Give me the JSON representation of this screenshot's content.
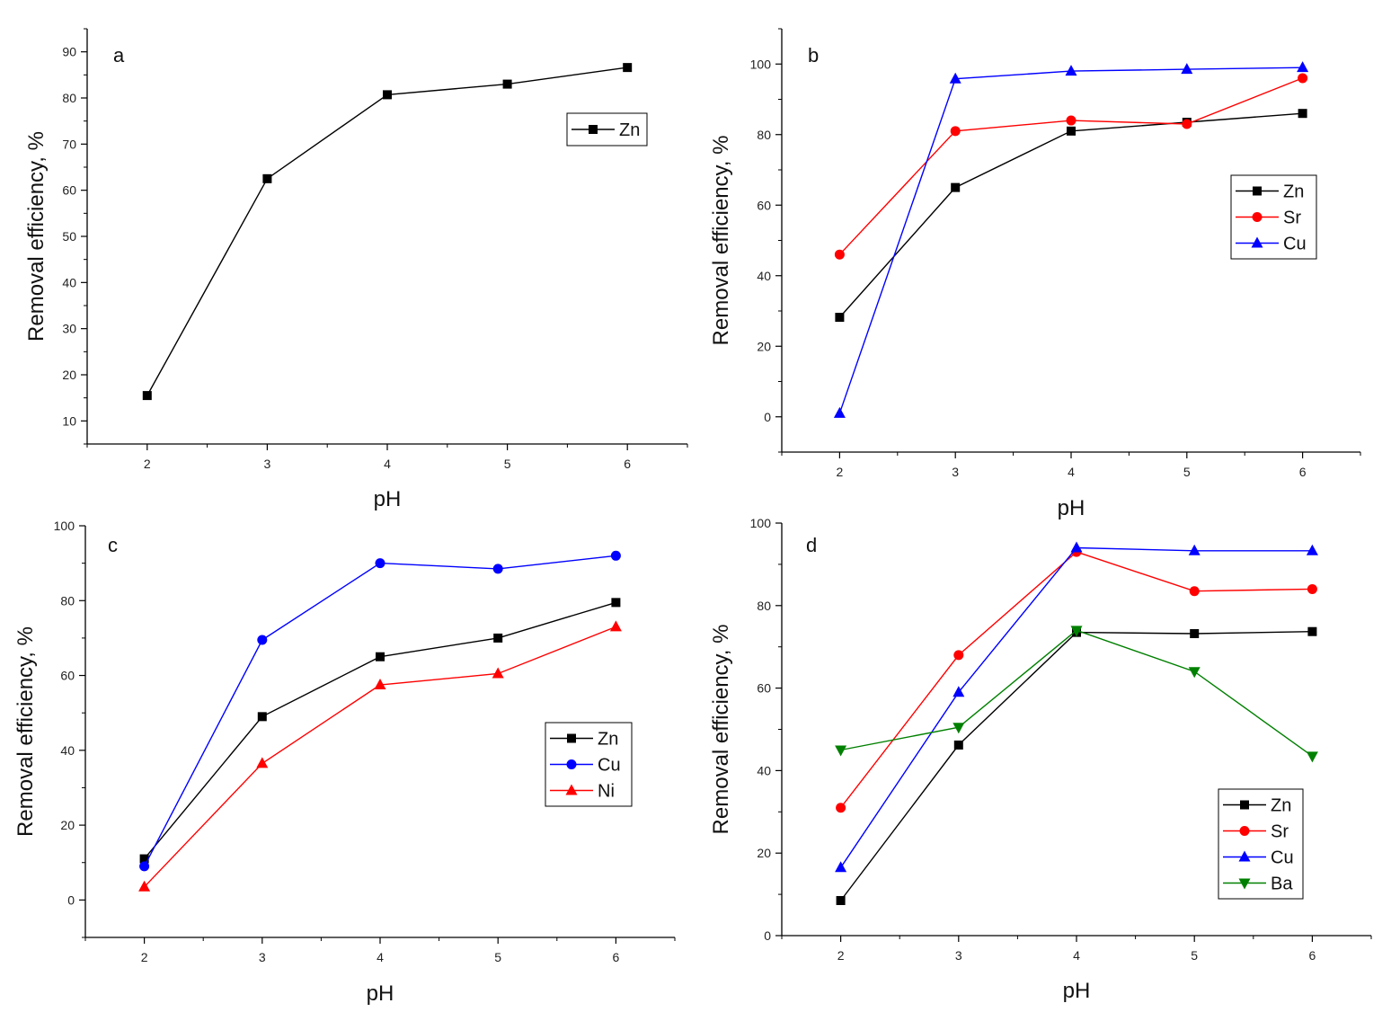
{
  "chart_data": [
    {
      "type": "line",
      "panel_label": "a",
      "xlabel": "pH",
      "ylabel": "Removal efficiency, %",
      "xlim": [
        1.5,
        6.5
      ],
      "ylim": [
        5,
        95
      ],
      "xticks": [
        2,
        3,
        4,
        5,
        6
      ],
      "yticks": [
        10,
        20,
        30,
        40,
        50,
        60,
        70,
        80,
        90
      ],
      "legend_position": "top-right",
      "series": [
        {
          "name": "Zn",
          "color": "#000000",
          "marker": "square",
          "x": [
            2,
            3,
            4,
            5,
            6
          ],
          "values": [
            15.5,
            62.5,
            80.7,
            83.0,
            86.6
          ]
        }
      ]
    },
    {
      "type": "line",
      "panel_label": "b",
      "xlabel": "pH",
      "ylabel": "Removal efficiency, %",
      "xlim": [
        1.5,
        6.5
      ],
      "ylim": [
        -10,
        110
      ],
      "xticks": [
        2,
        3,
        4,
        5,
        6
      ],
      "yticks": [
        0,
        20,
        40,
        60,
        80,
        100
      ],
      "legend_position": "right",
      "series": [
        {
          "name": "Zn",
          "color": "#000000",
          "marker": "square",
          "x": [
            2,
            3,
            4,
            5,
            6
          ],
          "values": [
            28.2,
            65.0,
            81.0,
            83.5,
            86.0
          ]
        },
        {
          "name": "Sr",
          "color": "#ff0000",
          "marker": "circle",
          "x": [
            2,
            3,
            4,
            5,
            6
          ],
          "values": [
            46.0,
            81.0,
            84.0,
            83.0,
            96.0
          ]
        },
        {
          "name": "Cu",
          "color": "#0000ff",
          "marker": "triangle-up",
          "x": [
            2,
            3,
            4,
            5,
            6
          ],
          "values": [
            1.0,
            95.8,
            98.0,
            98.5,
            99.0
          ]
        }
      ]
    },
    {
      "type": "line",
      "panel_label": "c",
      "xlabel": "pH",
      "ylabel": "Removal efficiency, %",
      "xlim": [
        1.5,
        6.5
      ],
      "ylim": [
        -10,
        100
      ],
      "xticks": [
        2,
        3,
        4,
        5,
        6
      ],
      "yticks": [
        0,
        20,
        40,
        60,
        80,
        100
      ],
      "legend_position": "right",
      "series": [
        {
          "name": "Zn",
          "color": "#000000",
          "marker": "square",
          "x": [
            2,
            3,
            4,
            5,
            6
          ],
          "values": [
            11.0,
            49.0,
            65.0,
            70.0,
            79.5
          ]
        },
        {
          "name": "Cu",
          "color": "#0000ff",
          "marker": "circle",
          "x": [
            2,
            3,
            4,
            5,
            6
          ],
          "values": [
            9.0,
            69.5,
            90.0,
            88.5,
            92.0
          ]
        },
        {
          "name": "Ni",
          "color": "#ff0000",
          "marker": "triangle-up",
          "x": [
            2,
            3,
            4,
            5,
            6
          ],
          "values": [
            3.5,
            36.5,
            57.5,
            60.5,
            73.0
          ]
        }
      ]
    },
    {
      "type": "line",
      "panel_label": "d",
      "xlabel": "pH",
      "ylabel": "Removal efficiency, %",
      "xlim": [
        1.5,
        6.5
      ],
      "ylim": [
        0,
        100
      ],
      "xticks": [
        2,
        3,
        4,
        5,
        6
      ],
      "yticks": [
        0,
        20,
        40,
        60,
        80,
        100
      ],
      "legend_position": "bottom-right",
      "series": [
        {
          "name": "Zn",
          "color": "#000000",
          "marker": "square",
          "x": [
            2,
            3,
            4,
            5,
            6
          ],
          "values": [
            8.5,
            46.2,
            73.5,
            73.2,
            73.7
          ]
        },
        {
          "name": "Sr",
          "color": "#ff0000",
          "marker": "circle",
          "x": [
            2,
            3,
            4,
            5,
            6
          ],
          "values": [
            31.0,
            68.0,
            93.0,
            83.5,
            84.0
          ]
        },
        {
          "name": "Cu",
          "color": "#0000ff",
          "marker": "triangle-up",
          "x": [
            2,
            3,
            4,
            5,
            6
          ],
          "values": [
            16.5,
            59.0,
            94.0,
            93.3,
            93.3
          ]
        },
        {
          "name": "Ba",
          "color": "#008000",
          "marker": "triangle-down",
          "x": [
            2,
            3,
            4,
            5,
            6
          ],
          "values": [
            45.0,
            50.5,
            74.0,
            64.0,
            43.5
          ]
        }
      ]
    }
  ]
}
